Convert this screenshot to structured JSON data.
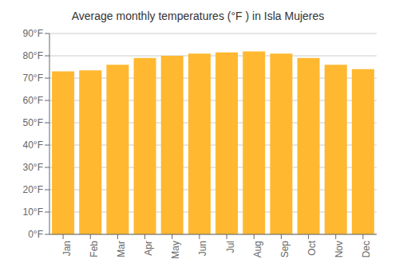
{
  "chart_data": {
    "type": "bar",
    "title": "Average monthly temperatures (°F ) in Isla Mujeres",
    "categories": [
      "Jan",
      "Feb",
      "Mar",
      "Apr",
      "May",
      "Jun",
      "Jul",
      "Aug",
      "Sep",
      "Oct",
      "Nov",
      "Dec"
    ],
    "values": [
      73,
      73.5,
      76,
      79,
      80,
      81,
      81.5,
      82,
      81,
      79,
      76,
      74
    ],
    "color": "#FFB830",
    "ylim": [
      0,
      90
    ],
    "yticks": [
      {
        "value": 0,
        "label": "0°F"
      },
      {
        "value": 10,
        "label": "10°F"
      },
      {
        "value": 20,
        "label": "20°F"
      },
      {
        "value": 30,
        "label": "30°F"
      },
      {
        "value": 40,
        "label": "40°F"
      },
      {
        "value": 50,
        "label": "50°F"
      },
      {
        "value": 60,
        "label": "60°F"
      },
      {
        "value": 70,
        "label": "70°F"
      },
      {
        "value": 80,
        "label": "80°F"
      },
      {
        "value": 90,
        "label": "90°F"
      }
    ],
    "grid": true
  }
}
